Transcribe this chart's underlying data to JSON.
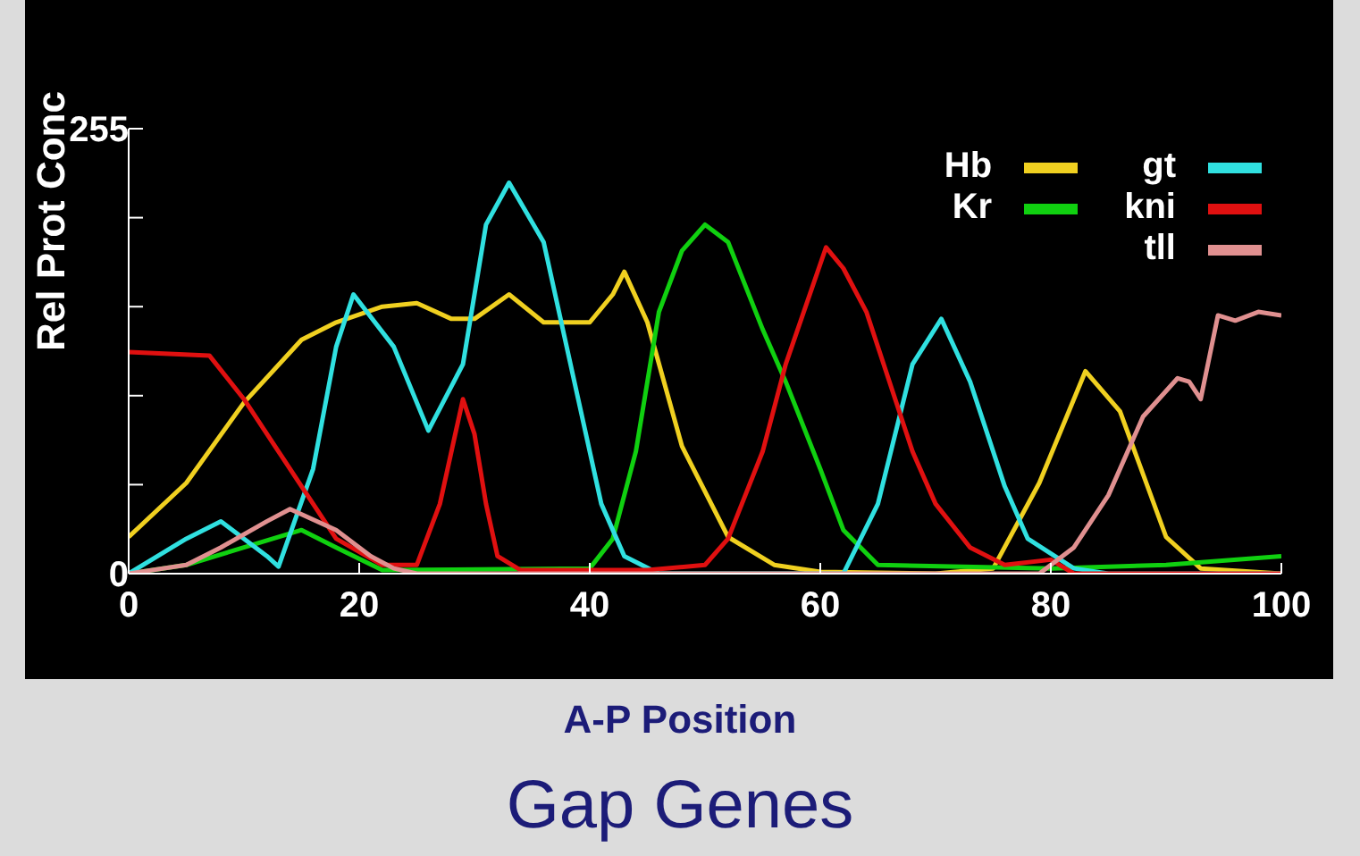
{
  "chart_data": {
    "type": "line",
    "title": "Gap Genes",
    "xlabel": "A-P Position",
    "ylabel": "Rel Prot Conc",
    "xlim": [
      0,
      100
    ],
    "xticks": [
      0,
      20,
      40,
      60,
      80,
      100
    ],
    "ylim": [
      0,
      255
    ],
    "yticks": [
      0,
      {
        "value": 51,
        "label": null
      },
      {
        "value": 102,
        "label": null
      },
      {
        "value": 153,
        "label": null
      },
      {
        "value": 204,
        "label": null
      },
      255
    ],
    "grid": false,
    "legend": "top right",
    "series": [
      {
        "name": "Hb",
        "color": "#f0d020",
        "x": [
          0,
          5,
          10,
          15,
          18,
          22,
          25,
          28,
          30,
          33,
          36,
          40,
          42,
          43,
          45,
          48,
          52,
          56,
          60,
          70,
          75,
          79,
          83,
          86,
          90,
          93,
          100
        ],
        "values": [
          21,
          52,
          98,
          134,
          144,
          153,
          155,
          146,
          146,
          160,
          144,
          144,
          160,
          173,
          144,
          73,
          21,
          5,
          1,
          0,
          3,
          52,
          116,
          93,
          21,
          3,
          0
        ]
      },
      {
        "name": "Kr",
        "color": "#10d010",
        "x": [
          0,
          5,
          10,
          15,
          18,
          22,
          40,
          42,
          44,
          46,
          48,
          50,
          52,
          55,
          57,
          60,
          62,
          65,
          80,
          90,
          100
        ],
        "values": [
          0,
          5,
          15,
          25,
          15,
          2,
          3,
          20,
          70,
          150,
          185,
          200,
          190,
          140,
          110,
          60,
          25,
          5,
          3,
          5,
          10
        ]
      },
      {
        "name": "gt",
        "color": "#30e0e0",
        "x": [
          0,
          5,
          8,
          12,
          13,
          16,
          18,
          19.5,
          23,
          26,
          29,
          31,
          33,
          36,
          39,
          41,
          43,
          46,
          62,
          65,
          68,
          70.5,
          73,
          76,
          78,
          82,
          85,
          100
        ],
        "values": [
          0,
          20,
          30,
          10,
          4,
          60,
          130,
          160,
          130,
          82,
          120,
          200,
          224,
          190,
          100,
          40,
          10,
          0,
          0,
          40,
          120,
          146,
          110,
          50,
          20,
          3,
          0,
          0
        ]
      },
      {
        "name": "kni",
        "color": "#e01010",
        "x": [
          0,
          7,
          10,
          13,
          15,
          18,
          22,
          25,
          27,
          29,
          30,
          31,
          32,
          34,
          45,
          50,
          52,
          55,
          57,
          60.5,
          62,
          64,
          66,
          68,
          70,
          73,
          76,
          80,
          82,
          100
        ],
        "values": [
          127,
          125,
          100,
          70,
          50,
          20,
          5,
          5,
          40,
          100,
          80,
          40,
          10,
          2,
          2,
          5,
          20,
          70,
          120,
          187,
          175,
          150,
          110,
          70,
          40,
          15,
          5,
          8,
          0,
          0
        ]
      },
      {
        "name": "tll",
        "color": "#e09090",
        "x": [
          0,
          5,
          8,
          12,
          14,
          18,
          21,
          23,
          25,
          79,
          82,
          85,
          88,
          91,
          92,
          93,
          94.5,
          96,
          98,
          100
        ],
        "values": [
          0,
          5,
          15,
          30,
          37,
          25,
          10,
          3,
          0,
          0,
          15,
          45,
          90,
          112,
          110,
          100,
          148,
          145,
          150,
          148
        ]
      }
    ]
  }
}
